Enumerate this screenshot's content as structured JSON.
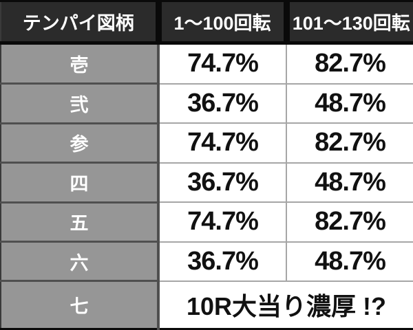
{
  "chart_data": {
    "type": "table",
    "columns": [
      "テンパイ図柄",
      "1〜100回転",
      "101〜130回転"
    ],
    "rows": [
      [
        "壱",
        "74.7%",
        "82.7%"
      ],
      [
        "弐",
        "36.7%",
        "48.7%"
      ],
      [
        "参",
        "74.7%",
        "82.7%"
      ],
      [
        "四",
        "36.7%",
        "48.7%"
      ],
      [
        "五",
        "74.7%",
        "82.7%"
      ],
      [
        "六",
        "36.7%",
        "48.7%"
      ],
      [
        "七",
        "10R大当り濃厚 !?"
      ]
    ],
    "merged_row_index": 6,
    "merged_row_colspan": 2,
    "legend_position": "none",
    "grid": true
  },
  "colors": {
    "header_bg": "#2b2b2b",
    "header_text": "#ffffff",
    "label_bg": "#969696",
    "label_text": "#ffffff",
    "cell_bg": "#ffffff",
    "cell_text": "#111111",
    "border_dark": "#0a0a0a",
    "border_outer": "#3a3a3a",
    "border_mid": "#4f4f4f",
    "border_light": "#a6a6a6"
  }
}
